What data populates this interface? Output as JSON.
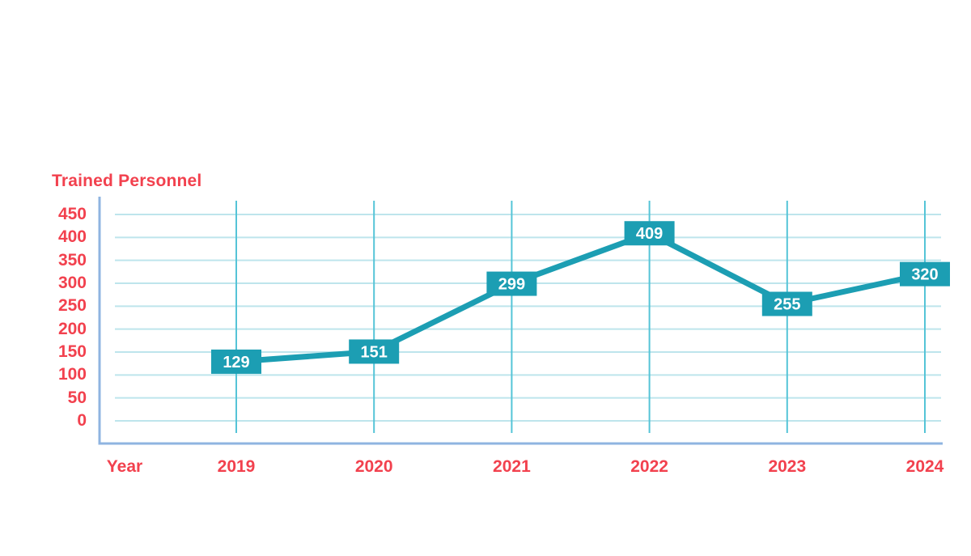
{
  "chart_data": {
    "type": "line",
    "title": "Trained Personnel",
    "xlabel": "Year",
    "categories": [
      "2019",
      "2020",
      "2021",
      "2022",
      "2023",
      "2024"
    ],
    "values": [
      129,
      151,
      299,
      409,
      255,
      320
    ],
    "yticks": [
      450,
      400,
      350,
      300,
      250,
      200,
      150,
      100,
      50,
      0
    ],
    "ylim": [
      0,
      450
    ],
    "grid": true,
    "legend": "none",
    "data_labels": [
      "129",
      "151",
      "299",
      "409",
      "255",
      "320"
    ],
    "colors": {
      "label_red": "#F2414E",
      "series_teal": "#1C9EB3",
      "grid_horizontal": "#BEE5EC",
      "grid_vertical": "#55C4D7",
      "axis_blue": "#8FB4E1",
      "data_label_text": "#FFFFFF",
      "background": "#FFFFFF"
    }
  }
}
